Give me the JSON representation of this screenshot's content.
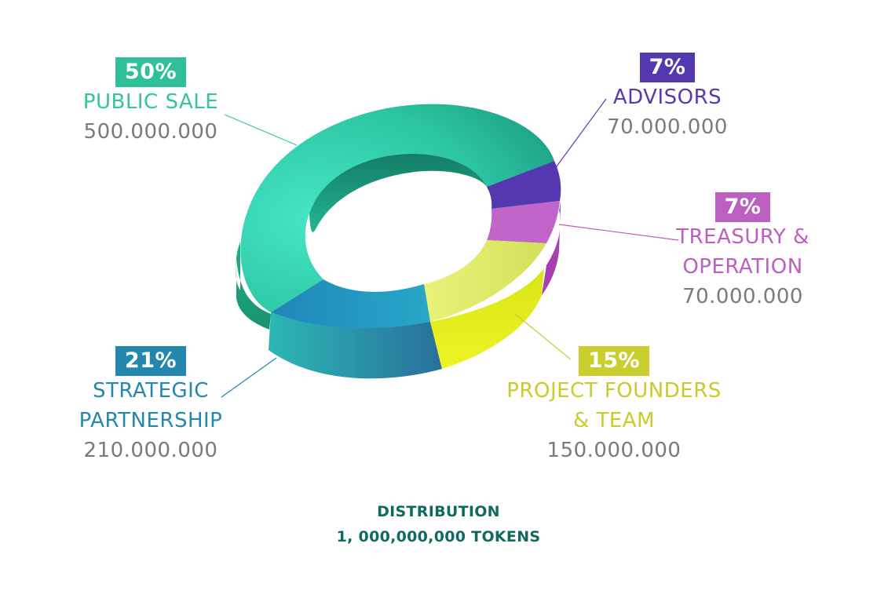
{
  "chart_data": {
    "type": "pie",
    "style": "3d-donut",
    "categories": [
      "PUBLIC SALE",
      "STRATEGIC PARTNERSHIP",
      "PROJECT FOUNDERS & TEAM",
      "TREASURY & OPERATION",
      "ADVISORS"
    ],
    "values": [
      50,
      21,
      15,
      7,
      7
    ],
    "unit": "%",
    "segments": [
      {
        "key": "public_sale",
        "percent_label": "50%",
        "name_lines": [
          "PUBLIC SALE"
        ],
        "amount": "500.000.000",
        "value": 50,
        "color": "#2fc6a4"
      },
      {
        "key": "advisors",
        "percent_label": "7%",
        "name_lines": [
          "ADVISORS"
        ],
        "amount": "70.000.000",
        "value": 7,
        "color": "#5a3aa8"
      },
      {
        "key": "treasury",
        "percent_label": "7%",
        "name_lines": [
          "TREASURY &",
          "OPERATION"
        ],
        "amount": "70.000.000",
        "value": 7,
        "color": "#bb5fc0"
      },
      {
        "key": "founders",
        "percent_label": "15%",
        "name_lines": [
          "PROJECT FOUNDERS",
          "& TEAM"
        ],
        "amount": "150.000.000",
        "value": 15,
        "color": "#cfd62c"
      },
      {
        "key": "strategic",
        "percent_label": "21%",
        "name_lines": [
          "STRATEGIC",
          "PARTNERSHIP"
        ],
        "amount": "210.000.000",
        "value": 21,
        "color": "#2487ad"
      }
    ],
    "title": "DISTRIBUTION",
    "subtitle": "1, 000,000,000 TOKENS"
  }
}
